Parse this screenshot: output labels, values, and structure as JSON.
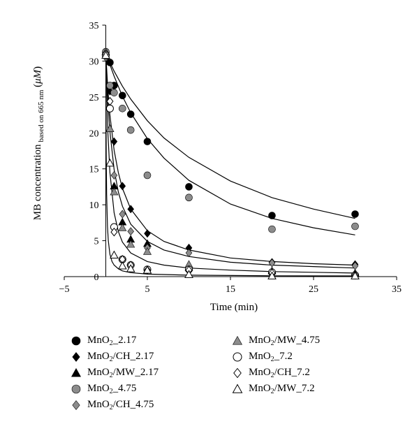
{
  "chart_data": {
    "type": "scatter",
    "title": "",
    "xlabel": "Time (min)",
    "ylabel": {
      "main": "MB concentration",
      "subscript": "based on 665 nm",
      "unit_open": " (",
      "unit_symbol": "μM",
      "unit_close": ")"
    },
    "xlim": [
      -5,
      35
    ],
    "ylim": [
      0,
      35
    ],
    "xticks": [
      "−5",
      "5",
      "15",
      "25",
      "35"
    ],
    "xtick_values": [
      -5,
      5,
      15,
      25,
      35
    ],
    "yticks": [
      "0",
      "5",
      "10",
      "15",
      "20",
      "25",
      "30",
      "35"
    ],
    "ytick_values": [
      0,
      5,
      10,
      15,
      20,
      25,
      30,
      35
    ],
    "grid": false,
    "legend_position": "bottom",
    "fit_curves": true,
    "series": [
      {
        "name": "MnO2_2.17",
        "label_parts": [
          "MnO",
          "2",
          "_2.17"
        ],
        "marker": "circle",
        "fill": "#000000",
        "x": [
          0,
          0.5,
          1,
          2,
          3,
          5,
          10,
          20,
          30
        ],
        "y": [
          31.2,
          29.8,
          26.6,
          25.2,
          22.6,
          18.8,
          12.5,
          8.5,
          8.7
        ]
      },
      {
        "name": "MnO2/CH_2.17",
        "label_parts": [
          "MnO",
          "2",
          "/CH_2.17"
        ],
        "marker": "diamond",
        "fill": "#000000",
        "x": [
          0,
          0.5,
          1,
          2,
          3,
          5,
          10,
          20,
          30
        ],
        "y": [
          30.6,
          25.8,
          18.8,
          12.6,
          9.4,
          6.0,
          4.0,
          2.0,
          1.7
        ]
      },
      {
        "name": "MnO2/MW_2.17",
        "label_parts": [
          "MnO",
          "2",
          "/MW_2.17"
        ],
        "marker": "triangle",
        "fill": "#000000",
        "x": [
          0,
          0.5,
          1,
          2,
          3,
          5,
          10,
          20,
          30
        ],
        "y": [
          30.8,
          20.6,
          12.6,
          7.6,
          5.2,
          4.6,
          1.3,
          0.8,
          0.5
        ]
      },
      {
        "name": "MnO2_4.75",
        "label_parts": [
          "MnO",
          "2",
          "_4.75"
        ],
        "marker": "circle",
        "fill": "#8c8c8c",
        "x": [
          0,
          0.5,
          1,
          2,
          3,
          5,
          10,
          20,
          30
        ],
        "y": [
          31.3,
          26.6,
          25.6,
          23.4,
          20.4,
          14.1,
          11.0,
          6.6,
          7.0
        ]
      },
      {
        "name": "MnO2/CH_4.75",
        "label_parts": [
          "MnO",
          "2",
          "/CH_4.75"
        ],
        "marker": "diamond",
        "fill": "#8c8c8c",
        "x": [
          0,
          0.5,
          1,
          2,
          3,
          5,
          10,
          20,
          30
        ],
        "y": [
          30.5,
          23.4,
          14.1,
          8.7,
          6.3,
          4.0,
          3.3,
          1.9,
          1.5
        ]
      },
      {
        "name": "MnO2/MW_4.75",
        "label_parts": [
          "MnO",
          "2",
          "/MW_4.75"
        ],
        "marker": "triangle",
        "fill": "#8c8c8c",
        "x": [
          0,
          0.5,
          1,
          2,
          3,
          5,
          10,
          20,
          30
        ],
        "y": [
          31.3,
          20.6,
          11.8,
          6.8,
          4.5,
          3.5,
          1.7,
          0.8,
          0.4
        ]
      },
      {
        "name": "MnO2_7.2",
        "label_parts": [
          "MnO",
          "2",
          "_7.2"
        ],
        "marker": "circle",
        "fill": "#ffffff",
        "x": [
          0,
          0.5,
          1,
          2,
          3,
          5,
          10,
          20,
          30
        ],
        "y": [
          30.8,
          23.4,
          6.9,
          2.4,
          1.6,
          1.0,
          1.0,
          0.6,
          0.2
        ]
      },
      {
        "name": "MnO2/CH_7.2",
        "label_parts": [
          "MnO",
          "2",
          "/CH_7.2"
        ],
        "marker": "diamond",
        "fill": "#ffffff",
        "x": [
          0,
          0.5,
          1,
          2,
          3,
          5,
          10,
          20,
          30
        ],
        "y": [
          31.0,
          24.4,
          6.2,
          2.4,
          1.6,
          0.9,
          0.9,
          0.5,
          0.2
        ]
      },
      {
        "name": "MnO2/MW_7.2",
        "label_parts": [
          "MnO",
          "2",
          "/MW_7.2"
        ],
        "marker": "triangle",
        "fill": "#ffffff",
        "x": [
          0,
          0.5,
          1,
          2,
          3,
          5,
          10,
          20,
          30
        ],
        "y": [
          30.8,
          15.8,
          3.0,
          1.5,
          1.1,
          0.9,
          0.3,
          0.1,
          0.1
        ]
      }
    ],
    "fits": [
      {
        "x": [
          0,
          0.5,
          1,
          2,
          3,
          5,
          7,
          10,
          15,
          20,
          25,
          30
        ],
        "y": [
          31.2,
          29.8,
          28.6,
          26.5,
          24.7,
          21.7,
          19.3,
          16.6,
          13.3,
          11.0,
          9.4,
          8.1
        ]
      },
      {
        "x": [
          0,
          0.5,
          1,
          2,
          3,
          5,
          7,
          10,
          15,
          20,
          25,
          30
        ],
        "y": [
          31.2,
          29.5,
          27.9,
          25.1,
          22.8,
          19.2,
          16.5,
          13.4,
          10.1,
          8.1,
          6.8,
          5.8
        ]
      },
      {
        "x": [
          0,
          0.25,
          0.5,
          1,
          1.5,
          2,
          3,
          5,
          7,
          10,
          15,
          20,
          25,
          30
        ],
        "y": [
          31.0,
          26.0,
          22.5,
          17.6,
          14.5,
          12.3,
          9.4,
          6.4,
          4.9,
          3.7,
          2.6,
          2.1,
          1.8,
          1.6
        ]
      },
      {
        "x": [
          0,
          0.25,
          0.5,
          1,
          1.5,
          2,
          3,
          5,
          7,
          10,
          15,
          20,
          25,
          30
        ],
        "y": [
          31.0,
          24.5,
          20.2,
          14.9,
          11.8,
          9.8,
          7.3,
          4.9,
          3.7,
          2.8,
          2.0,
          1.6,
          1.4,
          1.2
        ]
      },
      {
        "x": [
          0,
          0.25,
          0.5,
          1,
          1.5,
          2,
          3,
          5,
          7,
          10,
          15,
          20,
          25,
          30
        ],
        "y": [
          31.0,
          20.0,
          14.5,
          8.9,
          6.3,
          4.8,
          3.3,
          2.1,
          1.6,
          1.2,
          0.9,
          0.7,
          0.6,
          0.5
        ]
      },
      {
        "x": [
          0,
          0.05,
          0.1,
          0.2,
          0.3,
          0.5,
          0.75,
          1,
          1.5,
          2,
          3,
          5,
          10,
          20,
          30
        ],
        "y": [
          31.0,
          17.0,
          11.5,
          7.0,
          5.0,
          3.1,
          2.1,
          1.6,
          1.1,
          0.8,
          0.55,
          0.35,
          0.2,
          0.12,
          0.1
        ]
      }
    ]
  }
}
